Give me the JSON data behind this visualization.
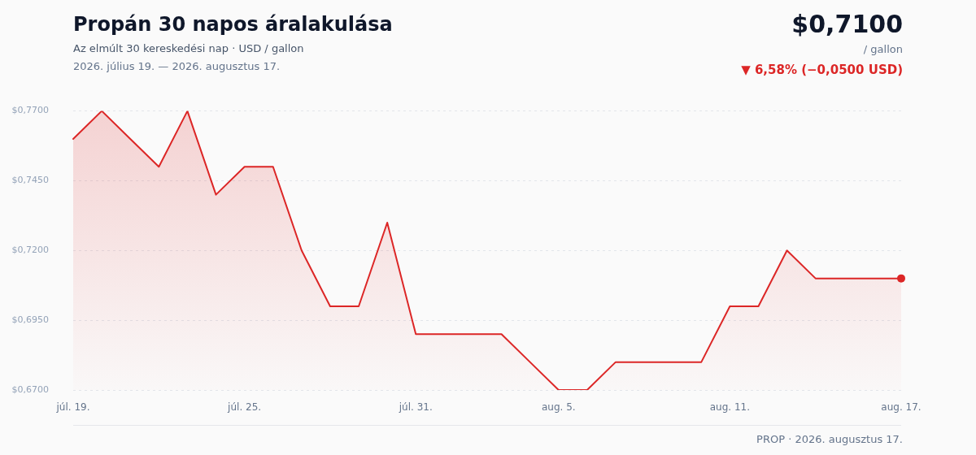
{
  "chart_data": {
    "type": "area",
    "title": "Propán 30 napos áralakulása",
    "subtitle": "Az elmúlt 30 kereskedési nap · USD / gallon",
    "annotations": [
      "2026. július 19. — 2026. augusztus 17.",
      "$0,7100",
      "/ gallon",
      "▼ 6,58% (−0,0500 USD)",
      "PROP · 2026. augusztus 17."
    ],
    "categories": [
      "júl. 19.",
      null,
      null,
      null,
      null,
      null,
      "júl. 25.",
      null,
      null,
      null,
      null,
      null,
      "júl. 31.",
      null,
      null,
      null,
      null,
      "aug. 5.",
      null,
      null,
      null,
      null,
      null,
      "aug. 11.",
      null,
      null,
      null,
      null,
      null,
      "aug. 17."
    ],
    "series": [
      {
        "color": "#dc2626",
        "values": [
          0.76,
          0.77,
          0.76,
          0.75,
          0.77,
          0.74,
          0.75,
          0.75,
          0.72,
          0.7,
          0.7,
          0.73,
          0.69,
          0.69,
          0.69,
          0.69,
          0.68,
          0.67,
          0.67,
          0.68,
          0.68,
          0.68,
          0.68,
          0.7,
          0.7,
          0.72,
          0.71,
          0.71,
          0.71,
          0.71
        ]
      },
      {
        "type": "scatter",
        "x": [
          "aug. 17."
        ],
        "values": [
          0.71
        ],
        "color": "#dc2626",
        "marker": "circle"
      }
    ],
    "ylim": [
      0.67,
      0.77
    ],
    "yticks": [
      {
        "value": 0.67,
        "label": "$0,6700"
      },
      {
        "value": 0.695,
        "label": "$0,6950"
      },
      {
        "value": 0.72,
        "label": "$0,7200"
      },
      {
        "value": 0.745,
        "label": "$0,7450"
      },
      {
        "value": 0.77,
        "label": "$0,7700"
      }
    ],
    "grid": "y"
  }
}
